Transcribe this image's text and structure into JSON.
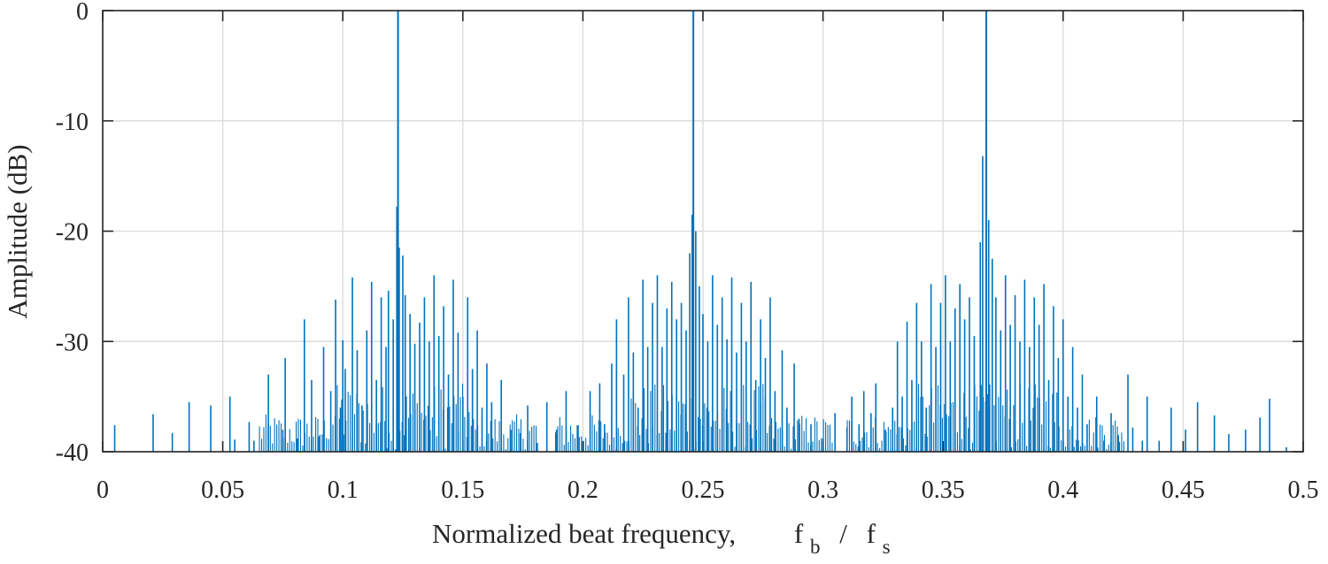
{
  "chart_data": {
    "type": "line",
    "style": "stem spectrum",
    "title": "",
    "xlabel_main": "Normalized beat frequency,",
    "xlabel_sym1": "f",
    "xlabel_sub1": "b",
    "xlabel_slash": "/",
    "xlabel_sym2": "f",
    "xlabel_sub2": "s",
    "ylabel": "Amplitude (dB)",
    "xlim": [
      0,
      0.5
    ],
    "ylim": [
      -40,
      0
    ],
    "grid": true,
    "xticks": [
      0,
      0.05,
      0.1,
      0.15,
      0.2,
      0.25,
      0.3,
      0.35,
      0.4,
      0.45,
      0.5
    ],
    "xtick_labels": [
      "0",
      "0.05",
      "0.1",
      "0.15",
      "0.2",
      "0.25",
      "0.3",
      "0.35",
      "0.4",
      "0.45",
      "0.5"
    ],
    "yticks": [
      0,
      -10,
      -20,
      -30,
      -40
    ],
    "ytick_labels": [
      "0",
      "-10",
      "-20",
      "-30",
      "-40"
    ],
    "line_color": "#0072BD",
    "main_peaks": [
      {
        "f": 0.123,
        "db": 0
      },
      {
        "f": 0.246,
        "db": 0
      },
      {
        "f": 0.368,
        "db": 0
      }
    ],
    "series": [
      {
        "name": "spectrum",
        "points": [
          [
            0.005,
            -37.6
          ],
          [
            0.021,
            -36.6
          ],
          [
            0.029,
            -38.3
          ],
          [
            0.036,
            -35.5
          ],
          [
            0.045,
            -35.8
          ],
          [
            0.053,
            -35.0
          ],
          [
            0.055,
            -38.9
          ],
          [
            0.061,
            -37.3
          ],
          [
            0.063,
            -39.0
          ],
          [
            0.069,
            -33.0
          ],
          [
            0.075,
            -38.0
          ],
          [
            0.076,
            -31.5
          ],
          [
            0.081,
            -38.8
          ],
          [
            0.084,
            -28.0
          ],
          [
            0.087,
            -33.5
          ],
          [
            0.09,
            -38.6
          ],
          [
            0.092,
            -30.5
          ],
          [
            0.095,
            -34.5
          ],
          [
            0.097,
            -26.2
          ],
          [
            0.099,
            -36.0
          ],
          [
            0.101,
            -32.5
          ],
          [
            0.1,
            -29.9
          ],
          [
            0.104,
            -24.2
          ],
          [
            0.106,
            -30.8
          ],
          [
            0.108,
            -35.8
          ],
          [
            0.11,
            -29.0
          ],
          [
            0.112,
            -24.6
          ],
          [
            0.114,
            -33.5
          ],
          [
            0.116,
            -26.0
          ],
          [
            0.118,
            -30.5
          ],
          [
            0.119,
            -25.4
          ],
          [
            0.121,
            -28.0
          ],
          [
            0.1225,
            -17.8
          ],
          [
            0.1235,
            -21.5
          ],
          [
            0.125,
            -22.2
          ],
          [
            0.126,
            -25.8
          ],
          [
            0.128,
            -27.5
          ],
          [
            0.13,
            -30.2
          ],
          [
            0.132,
            -28.3
          ],
          [
            0.134,
            -26.0
          ],
          [
            0.136,
            -30.0
          ],
          [
            0.138,
            -24.0
          ],
          [
            0.14,
            -29.5
          ],
          [
            0.142,
            -26.8
          ],
          [
            0.144,
            -33.0
          ],
          [
            0.146,
            -24.4
          ],
          [
            0.148,
            -29.2
          ],
          [
            0.15,
            -35.0
          ],
          [
            0.152,
            -26.0
          ],
          [
            0.154,
            -32.5
          ],
          [
            0.156,
            -29.0
          ],
          [
            0.158,
            -36.0
          ],
          [
            0.16,
            -32.0
          ],
          [
            0.162,
            -35.5
          ],
          [
            0.166,
            -33.5
          ],
          [
            0.17,
            -38.0
          ],
          [
            0.174,
            -38.3
          ],
          [
            0.177,
            -35.8
          ],
          [
            0.181,
            -39.2
          ],
          [
            0.185,
            -35.5
          ],
          [
            0.189,
            -38.0
          ],
          [
            0.193,
            -34.5
          ],
          [
            0.198,
            -37.6
          ],
          [
            0.203,
            -34.5
          ],
          [
            0.207,
            -33.8
          ],
          [
            0.209,
            -37.5
          ],
          [
            0.212,
            -32.0
          ],
          [
            0.214,
            -28.0
          ],
          [
            0.217,
            -33.0
          ],
          [
            0.219,
            -26.0
          ],
          [
            0.221,
            -31.0
          ],
          [
            0.223,
            -36.0
          ],
          [
            0.225,
            -24.4
          ],
          [
            0.227,
            -30.5
          ],
          [
            0.229,
            -26.5
          ],
          [
            0.231,
            -24.0
          ],
          [
            0.233,
            -30.5
          ],
          [
            0.235,
            -27.0
          ],
          [
            0.237,
            -24.6
          ],
          [
            0.239,
            -28.0
          ],
          [
            0.241,
            -26.5
          ],
          [
            0.243,
            -29.0
          ],
          [
            0.2445,
            -22.0
          ],
          [
            0.2455,
            -18.5
          ],
          [
            0.247,
            -20.0
          ],
          [
            0.2485,
            -25.0
          ],
          [
            0.25,
            -27.5
          ],
          [
            0.252,
            -30.0
          ],
          [
            0.254,
            -24.0
          ],
          [
            0.256,
            -28.5
          ],
          [
            0.258,
            -26.0
          ],
          [
            0.26,
            -29.8
          ],
          [
            0.262,
            -24.2
          ],
          [
            0.264,
            -31.0
          ],
          [
            0.266,
            -26.5
          ],
          [
            0.268,
            -30.0
          ],
          [
            0.27,
            -24.6
          ],
          [
            0.272,
            -33.5
          ],
          [
            0.274,
            -28.0
          ],
          [
            0.276,
            -31.5
          ],
          [
            0.278,
            -26.0
          ],
          [
            0.28,
            -34.5
          ],
          [
            0.283,
            -30.8
          ],
          [
            0.285,
            -36.0
          ],
          [
            0.288,
            -32.0
          ],
          [
            0.29,
            -37.0
          ],
          [
            0.295,
            -37.5
          ],
          [
            0.3,
            -38.8
          ],
          [
            0.305,
            -36.5
          ],
          [
            0.31,
            -37.8
          ],
          [
            0.312,
            -35.0
          ],
          [
            0.315,
            -37.5
          ],
          [
            0.317,
            -34.5
          ],
          [
            0.32,
            -36.5
          ],
          [
            0.322,
            -33.8
          ],
          [
            0.326,
            -38.0
          ],
          [
            0.329,
            -36.0
          ],
          [
            0.331,
            -30.0
          ],
          [
            0.333,
            -35.0
          ],
          [
            0.335,
            -28.2
          ],
          [
            0.337,
            -33.5
          ],
          [
            0.339,
            -26.5
          ],
          [
            0.341,
            -30.0
          ],
          [
            0.343,
            -36.0
          ],
          [
            0.345,
            -24.8
          ],
          [
            0.347,
            -30.5
          ],
          [
            0.349,
            -26.5
          ],
          [
            0.351,
            -24.0
          ],
          [
            0.353,
            -30.0
          ],
          [
            0.355,
            -27.0
          ],
          [
            0.357,
            -24.8
          ],
          [
            0.359,
            -28.0
          ],
          [
            0.361,
            -26.0
          ],
          [
            0.363,
            -29.5
          ],
          [
            0.3655,
            -21.0
          ],
          [
            0.3665,
            -13.2
          ],
          [
            0.369,
            -19.0
          ],
          [
            0.3705,
            -22.5
          ],
          [
            0.372,
            -26.0
          ],
          [
            0.374,
            -29.0
          ],
          [
            0.376,
            -24.0
          ],
          [
            0.378,
            -28.5
          ],
          [
            0.38,
            -25.8
          ],
          [
            0.382,
            -30.0
          ],
          [
            0.384,
            -24.4
          ],
          [
            0.386,
            -30.5
          ],
          [
            0.388,
            -26.0
          ],
          [
            0.39,
            -28.5
          ],
          [
            0.392,
            -24.8
          ],
          [
            0.394,
            -33.5
          ],
          [
            0.396,
            -26.8
          ],
          [
            0.398,
            -31.5
          ],
          [
            0.4,
            -28.0
          ],
          [
            0.402,
            -35.0
          ],
          [
            0.404,
            -30.5
          ],
          [
            0.406,
            -36.0
          ],
          [
            0.408,
            -33.0
          ],
          [
            0.41,
            -37.5
          ],
          [
            0.414,
            -35.0
          ],
          [
            0.417,
            -39.0
          ],
          [
            0.42,
            -36.5
          ],
          [
            0.423,
            -38.5
          ],
          [
            0.427,
            -33.0
          ],
          [
            0.429,
            -37.8
          ],
          [
            0.433,
            -39.0
          ],
          [
            0.435,
            -35.0
          ],
          [
            0.44,
            -39.0
          ],
          [
            0.445,
            -36.0
          ],
          [
            0.451,
            -38.0
          ],
          [
            0.456,
            -35.5
          ],
          [
            0.463,
            -36.7
          ],
          [
            0.469,
            -38.4
          ],
          [
            0.476,
            -38.0
          ],
          [
            0.482,
            -36.9
          ],
          [
            0.486,
            -35.2
          ],
          [
            0.493,
            -39.6
          ]
        ]
      }
    ]
  }
}
